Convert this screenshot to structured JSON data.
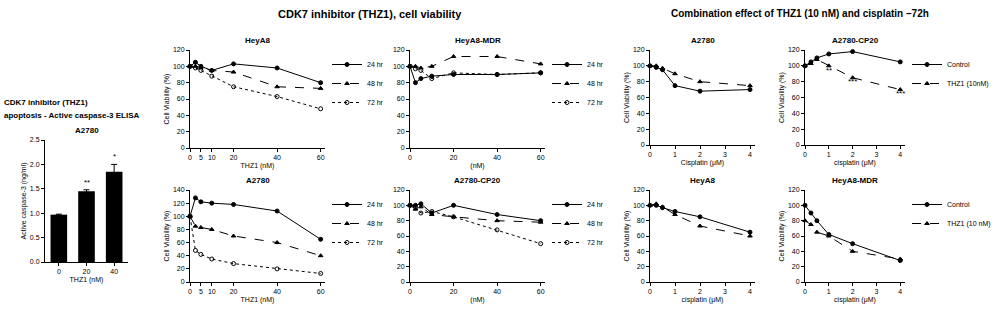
{
  "headings": [
    [
      "CDK7 inhibitor (THZ1)",
      "apoptosis - Active caspase-3 ELISA"
    ],
    [
      "CDK7 inhibitor (THZ1), cell viability"
    ],
    [
      "Combination effect of THZ1 (10 nM) and cisplatin –72h"
    ]
  ],
  "chart_data": [
    {
      "type": "bar",
      "title": "A2780",
      "xlabel": "THZ1 (nM)",
      "ylabel": "Active caspase-3 (ng/ml)",
      "categories": [
        "0",
        "20",
        "40"
      ],
      "values": [
        0.97,
        1.45,
        1.85
      ],
      "errors": [
        0.01,
        0.03,
        0.15
      ],
      "color": "#000000",
      "ylim": [
        0,
        2.5
      ],
      "yticks": [
        {
          "value": 0,
          "label": "0.0"
        },
        {
          "value": 0.5,
          "label": "0.5"
        },
        {
          "value": 1,
          "label": "1.0"
        },
        {
          "value": 1.5,
          "label": "1.5"
        },
        {
          "value": 2,
          "label": "2.0"
        },
        {
          "value": 2.5,
          "label": "2.5"
        }
      ],
      "annotations": [
        {
          "x": 1,
          "y": 1.5,
          "text": "**"
        },
        {
          "x": 2,
          "y": 2.02,
          "text": "*"
        }
      ]
    },
    {
      "type": "line",
      "title": "HeyA8",
      "xlabel": "THZ1 (nM)",
      "ylabel": "Cell Viability (%)",
      "legend": "right",
      "x": [
        0,
        2.5,
        5,
        10,
        20,
        40,
        60
      ],
      "xlim": [
        0,
        62
      ],
      "xticks": [
        0,
        5,
        10,
        20,
        40,
        60
      ],
      "ylim": [
        0,
        120
      ],
      "yticks": [
        0,
        20,
        40,
        60,
        80,
        100,
        120
      ],
      "series": [
        {
          "name": "24 hr",
          "color": "#000000",
          "marker": "circle",
          "line_style": "solid",
          "values": [
            100,
            105,
            100,
            95,
            103,
            98,
            80
          ]
        },
        {
          "name": "48 hr",
          "color": "#000000",
          "marker": "triangle-up",
          "line_style": "dash",
          "values": [
            100,
            100,
            98,
            95,
            93,
            75,
            73
          ]
        },
        {
          "name": "72 hr",
          "color": "#000000",
          "marker": "circle-open",
          "line_style": "dot",
          "values": [
            100,
            98,
            95,
            88,
            75,
            63,
            48
          ]
        }
      ]
    },
    {
      "type": "line",
      "title": "HeyA8-MDR",
      "xlabel": "(nM)",
      "legend": "right",
      "x": [
        0,
        2.5,
        5,
        10,
        20,
        40,
        60
      ],
      "xlim": [
        0,
        62
      ],
      "xticks": [
        0,
        20,
        40,
        60
      ],
      "ylim": [
        0,
        120
      ],
      "yticks": [
        0,
        20,
        40,
        60,
        80,
        100,
        120
      ],
      "series": [
        {
          "name": "24 hr",
          "color": "#000000",
          "marker": "circle",
          "line_style": "solid",
          "values": [
            100,
            80,
            85,
            88,
            90,
            90,
            92
          ]
        },
        {
          "name": "48 hr",
          "color": "#000000",
          "marker": "triangle-up",
          "line_style": "dash",
          "values": [
            100,
            100,
            98,
            100,
            112,
            112,
            103
          ]
        },
        {
          "name": "72 hr",
          "color": "#000000",
          "marker": "circle-open",
          "line_style": "dot",
          "values": [
            100,
            97,
            95,
            85,
            92,
            90,
            92
          ]
        }
      ]
    },
    {
      "type": "line",
      "title": "A2780",
      "xlabel": "THZ1 (nM)",
      "ylabel": "Cell Viability (%)",
      "legend": "right",
      "x": [
        0,
        2.5,
        5,
        10,
        20,
        40,
        60
      ],
      "xlim": [
        0,
        62
      ],
      "xticks": [
        0,
        5,
        10,
        20,
        40,
        60
      ],
      "ylim": [
        0,
        140
      ],
      "yticks": [
        0,
        20,
        40,
        60,
        80,
        100,
        120,
        140
      ],
      "series": [
        {
          "name": "24 hr",
          "color": "#000000",
          "marker": "circle",
          "line_style": "solid",
          "values": [
            100,
            128,
            122,
            120,
            118,
            108,
            65
          ]
        },
        {
          "name": "48 hr",
          "color": "#000000",
          "marker": "triangle-up",
          "line_style": "dash",
          "values": [
            100,
            85,
            83,
            80,
            70,
            60,
            40
          ]
        },
        {
          "name": "72 hr",
          "color": "#000000",
          "marker": "circle-open",
          "line_style": "dot",
          "values": [
            100,
            48,
            42,
            35,
            28,
            20,
            13
          ]
        }
      ]
    },
    {
      "type": "line",
      "title": "A2780-CP20",
      "xlabel": "(nM)",
      "legend": "right",
      "x": [
        0,
        2.5,
        5,
        10,
        20,
        40,
        60
      ],
      "xlim": [
        0,
        62
      ],
      "xticks": [
        0,
        20,
        40,
        60
      ],
      "ylim": [
        0,
        120
      ],
      "yticks": [
        0,
        20,
        40,
        60,
        80,
        100,
        120
      ],
      "series": [
        {
          "name": "24 hr",
          "color": "#000000",
          "marker": "circle",
          "line_style": "solid",
          "values": [
            100,
            100,
            102,
            90,
            100,
            88,
            80
          ]
        },
        {
          "name": "48 hr",
          "color": "#000000",
          "marker": "triangle-up",
          "line_style": "dash",
          "values": [
            100,
            95,
            98,
            88,
            85,
            80,
            78
          ]
        },
        {
          "name": "72 hr",
          "color": "#000000",
          "marker": "circle-open",
          "line_style": "dot",
          "values": [
            100,
            98,
            90,
            92,
            85,
            68,
            50
          ]
        }
      ]
    },
    {
      "type": "line",
      "title": "A2780",
      "xlabel": "Cisplatin (μM)",
      "ylabel": "Cell Viability (%)",
      "x": [
        0,
        0.25,
        0.5,
        1,
        2,
        4
      ],
      "xlim": [
        0,
        4.2
      ],
      "xticks": [
        0,
        1,
        2,
        3,
        4
      ],
      "ylim": [
        0,
        120
      ],
      "yticks": [
        0,
        20,
        40,
        60,
        80,
        100,
        120
      ],
      "series": [
        {
          "color": "#000000",
          "marker": "circle",
          "line_style": "solid",
          "values": [
            100,
            98,
            95,
            75,
            68,
            70
          ]
        },
        {
          "color": "#000000",
          "marker": "triangle-up",
          "line_style": "dash",
          "values": [
            100,
            100,
            97,
            90,
            80,
            75
          ]
        }
      ]
    },
    {
      "type": "line",
      "title": "A2780-CP20",
      "xlabel": "cisplatin (μM)",
      "ylabel": "Cell Viability (%)",
      "legend": "right",
      "x": [
        0,
        0.25,
        0.5,
        1,
        2,
        4
      ],
      "xlim": [
        0,
        4.2
      ],
      "xticks": [
        0,
        1,
        2,
        3,
        4
      ],
      "ylim": [
        0,
        120
      ],
      "yticks": [
        0,
        20,
        40,
        60,
        80,
        100,
        120
      ],
      "series": [
        {
          "name": "Control",
          "color": "#000000",
          "marker": "circle",
          "line_style": "solid",
          "values": [
            100,
            105,
            110,
            115,
            118,
            105
          ]
        },
        {
          "name": "THZ1 (10nM)",
          "color": "#000000",
          "marker": "triangle-up",
          "line_style": "dash",
          "values": [
            100,
            103,
            108,
            100,
            85,
            70
          ]
        }
      ],
      "annotations": [
        {
          "x": 1,
          "y": 86,
          "text": "**"
        },
        {
          "x": 2,
          "y": 72,
          "text": "***"
        },
        {
          "x": 4,
          "y": 57,
          "text": "***"
        }
      ]
    },
    {
      "type": "line",
      "title": "HeyA8",
      "xlabel": "cisplatin (μM)",
      "ylabel": "Cell Viability (%)",
      "x": [
        0,
        0.25,
        0.5,
        1,
        2,
        4
      ],
      "xlim": [
        0,
        4.2
      ],
      "xticks": [
        0,
        1,
        2,
        3,
        4
      ],
      "ylim": [
        0,
        120
      ],
      "yticks": [
        0,
        20,
        40,
        60,
        80,
        100,
        120
      ],
      "series": [
        {
          "color": "#000000",
          "marker": "circle",
          "line_style": "solid",
          "values": [
            100,
            100,
            97,
            92,
            85,
            65
          ]
        },
        {
          "color": "#000000",
          "marker": "triangle-up",
          "line_style": "dash",
          "values": [
            100,
            102,
            98,
            88,
            73,
            60
          ]
        }
      ]
    },
    {
      "type": "line",
      "title": "HeyA8-MDR",
      "xlabel": "cisplatin (μM)",
      "ylabel": "Cell Viability (%)",
      "legend": "right",
      "x": [
        0,
        0.25,
        0.5,
        1,
        2,
        4
      ],
      "xlim": [
        0,
        4.2
      ],
      "xticks": [
        0,
        1,
        2,
        3,
        4
      ],
      "ylim": [
        0,
        120
      ],
      "yticks": [
        0,
        20,
        40,
        60,
        80,
        100,
        120
      ],
      "series": [
        {
          "name": "Control",
          "color": "#000000",
          "marker": "circle",
          "line_style": "solid",
          "values": [
            100,
            90,
            80,
            62,
            50,
            28
          ]
        },
        {
          "name": "THZ1 (10 nM)",
          "color": "#000000",
          "marker": "triangle-up",
          "line_style": "dash",
          "values": [
            80,
            75,
            65,
            60,
            40,
            30
          ]
        }
      ]
    }
  ]
}
